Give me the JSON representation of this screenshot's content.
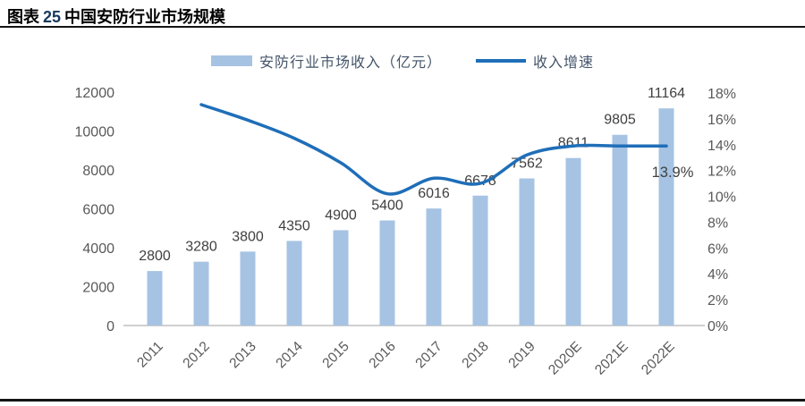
{
  "figure": {
    "title_prefix": "图表",
    "title_number": "25",
    "title_text": "中国安防行业市场规模"
  },
  "legend": [
    {
      "type": "bar",
      "label": "安防行业市场收入（亿元）",
      "color": "#A6C3E3"
    },
    {
      "type": "line",
      "label": "收入增速",
      "color": "#1F6EB8"
    }
  ],
  "chart_data": {
    "type": "bar+line",
    "title": "中国安防行业市场规模",
    "categories": [
      "2011",
      "2012",
      "2013",
      "2014",
      "2015",
      "2016",
      "2017",
      "2018",
      "2019",
      "2020E",
      "2021E",
      "2022E"
    ],
    "series": [
      {
        "name": "安防行业市场收入（亿元）",
        "type": "bar",
        "axis": "left",
        "color": "#A6C3E3",
        "values": [
          2800,
          3280,
          3800,
          4350,
          4900,
          5400,
          6016,
          6678,
          7562,
          8611,
          9805,
          11164
        ]
      },
      {
        "name": "收入增速",
        "type": "line",
        "axis": "right",
        "color": "#1F6EB8",
        "values": [
          null,
          17.1,
          15.9,
          14.5,
          12.6,
          10.2,
          11.4,
          11.0,
          13.2,
          13.9,
          13.9,
          13.9
        ]
      }
    ],
    "left_axis": {
      "min": 0,
      "max": 12000,
      "step": 2000,
      "ticks": [
        "0",
        "2000",
        "4000",
        "6000",
        "8000",
        "10000",
        "12000"
      ]
    },
    "right_axis": {
      "min": 0,
      "max": 18,
      "step": 2,
      "ticks": [
        "0%",
        "2%",
        "4%",
        "6%",
        "8%",
        "10%",
        "12%",
        "14%",
        "16%",
        "18%"
      ]
    },
    "bar_value_labels": [
      "2800",
      "3280",
      "3800",
      "4350",
      "4900",
      "5400",
      "6016",
      "6678",
      "7562",
      "8611",
      "9805",
      "11164"
    ],
    "annotation": {
      "text": "13.9%",
      "category": "2022E",
      "value": 13.9
    },
    "grid": false,
    "legend_position": "top"
  },
  "colors": {
    "axis_text": "#595959",
    "value_label_text": "#404040",
    "baseline": "#BFBFBF",
    "rule": "#141414"
  }
}
